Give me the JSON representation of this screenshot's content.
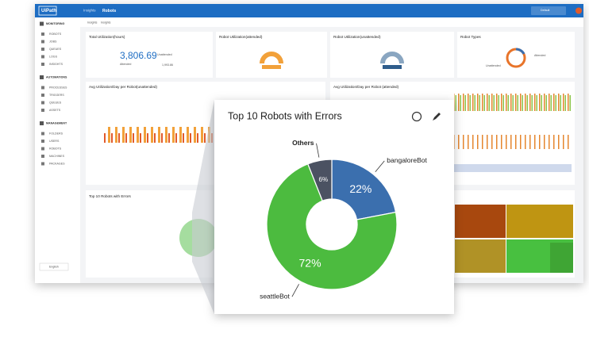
{
  "header": {
    "brand": "UiPath",
    "tabs": [
      "Insights",
      "Robots"
    ],
    "tenant": "Default"
  },
  "breadcrumb": [
    "Insights",
    "Insights"
  ],
  "sidebar": {
    "sections": [
      {
        "title": "MONITORING",
        "items": [
          "ROBOTS",
          "JOBS",
          "QUEUES",
          "LOGS",
          "INSIGHTS"
        ]
      },
      {
        "title": "AUTOMATIONS",
        "items": [
          "PROCESSES",
          "TRIGGERS",
          "QUEUES",
          "ASSETS"
        ]
      },
      {
        "title": "MANAGEMENT",
        "items": [
          "FOLDERS",
          "USERS",
          "ROBOTS",
          "MACHINES",
          "PACKAGES"
        ]
      }
    ],
    "language": "English"
  },
  "cards": {
    "total": {
      "title": "Total Utilization(hours)",
      "value": "3,806.69",
      "unattended_label": "Unattended",
      "unattended_value": "1,993.86",
      "attended_label": "Attended"
    },
    "attended": {
      "title": "Robot Utilization(attended)"
    },
    "unattended": {
      "title": "Robot Utilization(unattended)"
    },
    "types": {
      "title": "Robot Types",
      "attended_label": "Attended",
      "unattended_label": "Unattended"
    },
    "avg_unattended": {
      "title": "Avg Utilization/Day per Robot(unattended)"
    },
    "avg_attended": {
      "title": "Avg Utilization/Day per Robot (attended)"
    },
    "errors": {
      "title": "Top 10 Robots with Errors"
    }
  },
  "chart_data": {
    "type": "pie",
    "donut": true,
    "title": "Top 10 Robots with Errors",
    "categories": [
      "bangaloreBot",
      "seattleBot",
      "Others"
    ],
    "values": [
      22,
      72,
      6
    ],
    "value_labels": [
      "22%",
      "72%",
      "6%"
    ],
    "colors": [
      "#3b6fae",
      "#4cbb3f",
      "#4b5262"
    ]
  }
}
